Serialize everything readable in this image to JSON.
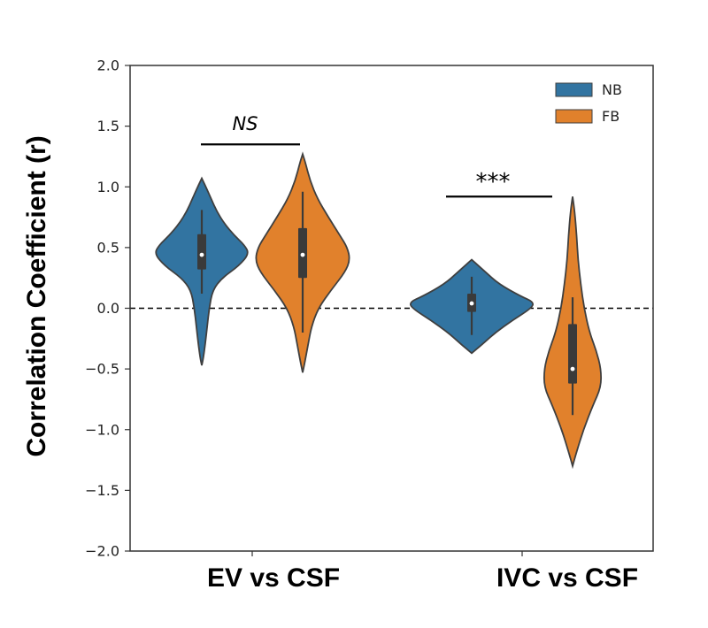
{
  "chart_data": {
    "type": "violin",
    "ylabel": "Correlation Coefficient (r)",
    "ylim": [
      -2.0,
      2.0
    ],
    "yticks": [
      "−2.0",
      "−1.5",
      "−1.0",
      "−0.5",
      "0.0",
      "0.5",
      "1.0",
      "1.5",
      "2.0"
    ],
    "ytick_values": [
      -2.0,
      -1.5,
      -1.0,
      -0.5,
      0.0,
      0.5,
      1.0,
      1.5,
      2.0
    ],
    "reference_line": 0.0,
    "categories": [
      "EV vs CSF",
      "IVC vs CSF"
    ],
    "legend": {
      "placement": "top-right",
      "entries": [
        "NB",
        "FB"
      ]
    },
    "colors": {
      "NB": "#3274a1",
      "FB": "#e1812c",
      "outline": "#3f3f3f"
    },
    "series": [
      {
        "name": "NB",
        "violins": [
          {
            "category": "EV vs CSF",
            "min": -0.47,
            "q1": 0.32,
            "median": 0.44,
            "q3": 0.61,
            "whisker_low": 0.12,
            "whisker_high": 0.81,
            "max": 1.07,
            "density": [
              [
                -0.47,
                0.0
              ],
              [
                -0.42,
                0.02
              ],
              [
                -0.3,
                0.05
              ],
              [
                -0.15,
                0.08
              ],
              [
                0.0,
                0.11
              ],
              [
                0.15,
                0.16
              ],
              [
                0.25,
                0.3
              ],
              [
                0.35,
                0.55
              ],
              [
                0.45,
                0.7
              ],
              [
                0.52,
                0.63
              ],
              [
                0.6,
                0.48
              ],
              [
                0.7,
                0.33
              ],
              [
                0.8,
                0.22
              ],
              [
                0.9,
                0.14
              ],
              [
                1.0,
                0.06
              ],
              [
                1.07,
                0.0
              ]
            ]
          },
          {
            "category": "IVC vs CSF",
            "min": -0.37,
            "q1": -0.03,
            "median": 0.04,
            "q3": 0.12,
            "whisker_low": -0.22,
            "whisker_high": 0.26,
            "max": 0.4,
            "density": [
              [
                -0.37,
                0.0
              ],
              [
                -0.3,
                0.15
              ],
              [
                -0.2,
                0.35
              ],
              [
                -0.1,
                0.6
              ],
              [
                0.0,
                0.88
              ],
              [
                0.05,
                0.92
              ],
              [
                0.1,
                0.72
              ],
              [
                0.2,
                0.4
              ],
              [
                0.3,
                0.2
              ],
              [
                0.36,
                0.08
              ],
              [
                0.4,
                0.0
              ]
            ]
          }
        ]
      },
      {
        "name": "FB",
        "violins": [
          {
            "category": "EV vs CSF",
            "min": -0.53,
            "q1": 0.25,
            "median": 0.44,
            "q3": 0.66,
            "whisker_low": -0.2,
            "whisker_high": 0.96,
            "max": 1.27,
            "density": [
              [
                -0.53,
                0.0
              ],
              [
                -0.45,
                0.03
              ],
              [
                -0.3,
                0.08
              ],
              [
                -0.15,
                0.13
              ],
              [
                0.0,
                0.23
              ],
              [
                0.15,
                0.42
              ],
              [
                0.3,
                0.63
              ],
              [
                0.4,
                0.7
              ],
              [
                0.5,
                0.66
              ],
              [
                0.6,
                0.55
              ],
              [
                0.75,
                0.38
              ],
              [
                0.9,
                0.22
              ],
              [
                1.05,
                0.11
              ],
              [
                1.2,
                0.04
              ],
              [
                1.27,
                0.0
              ]
            ]
          },
          {
            "category": "IVC vs CSF",
            "min": -1.3,
            "q1": -0.62,
            "median": -0.5,
            "q3": -0.13,
            "whisker_low": -0.88,
            "whisker_high": 0.09,
            "max": 0.92,
            "density": [
              [
                -1.3,
                0.0
              ],
              [
                -1.2,
                0.05
              ],
              [
                -1.0,
                0.16
              ],
              [
                -0.8,
                0.3
              ],
              [
                -0.65,
                0.42
              ],
              [
                -0.5,
                0.42
              ],
              [
                -0.35,
                0.35
              ],
              [
                -0.2,
                0.25
              ],
              [
                0.0,
                0.17
              ],
              [
                0.2,
                0.12
              ],
              [
                0.4,
                0.08
              ],
              [
                0.6,
                0.06
              ],
              [
                0.8,
                0.03
              ],
              [
                0.92,
                0.0
              ]
            ]
          }
        ]
      }
    ],
    "annotations": [
      {
        "label": "NS",
        "category": "EV vs CSF",
        "y": 1.35,
        "style": "italic"
      },
      {
        "label": "***",
        "category": "IVC vs CSF",
        "y": 0.92,
        "style": "normal"
      }
    ]
  }
}
